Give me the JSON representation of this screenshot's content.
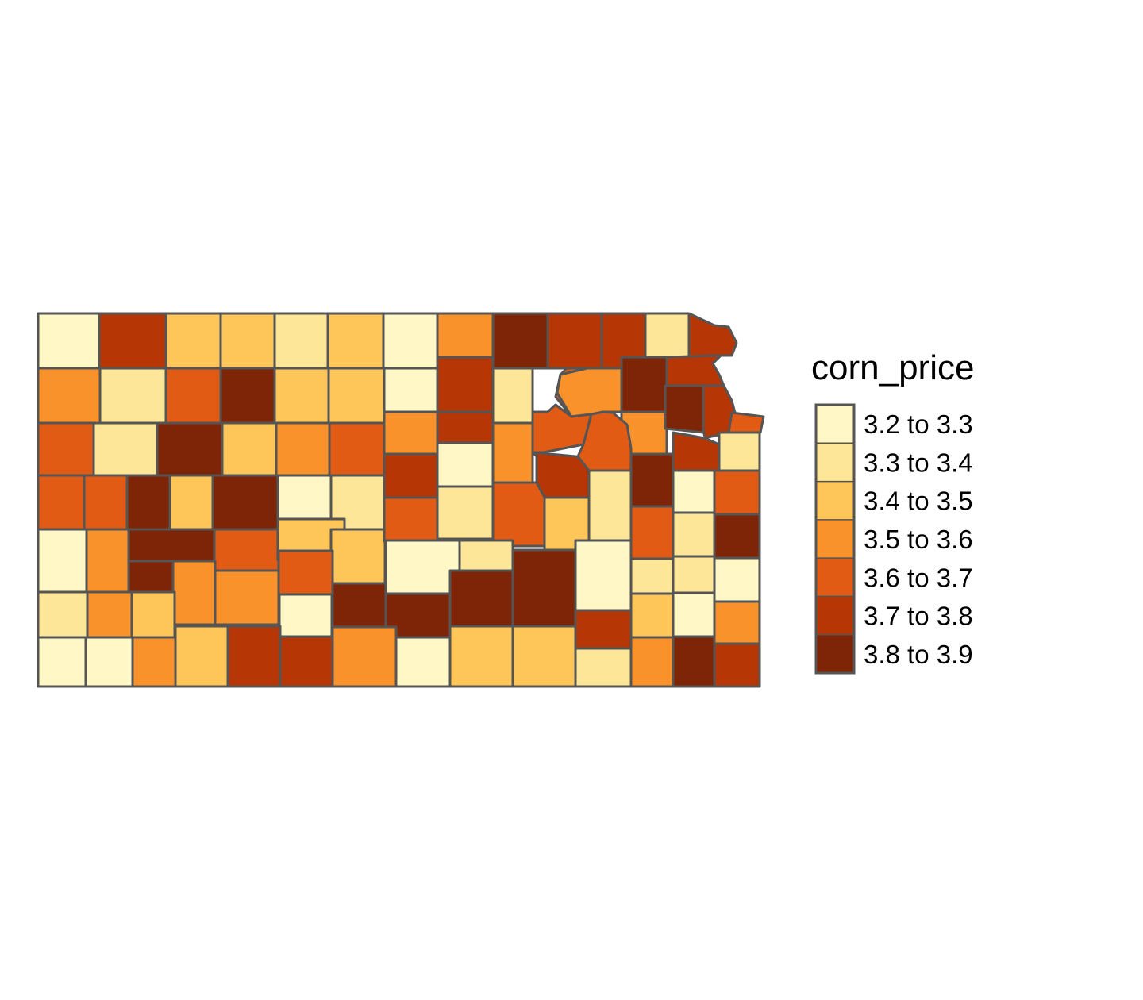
{
  "legend": {
    "title": "corn_price",
    "classes": [
      {
        "label": "3.2 to 3.3",
        "color": "#FFF8C6"
      },
      {
        "label": "3.3 to 3.4",
        "color": "#FEE698"
      },
      {
        "label": "3.4 to 3.5",
        "color": "#FEC559"
      },
      {
        "label": "3.5 to 3.6",
        "color": "#FA922B"
      },
      {
        "label": "3.6 to 3.7",
        "color": "#E15B14"
      },
      {
        "label": "3.7 to 3.8",
        "color": "#B63606"
      },
      {
        "label": "3.8 to 3.9",
        "color": "#7E2407"
      }
    ]
  },
  "outline_color": "#555555"
}
